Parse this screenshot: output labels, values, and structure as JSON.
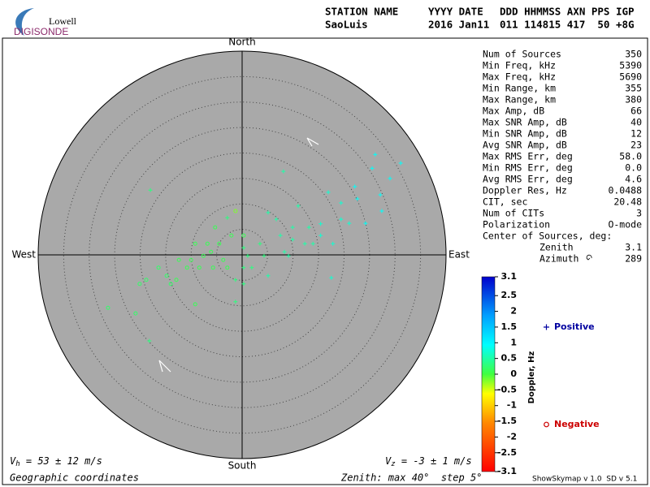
{
  "header": {
    "logo_top": "Lowell",
    "logo_bottom": "DIGISONDE",
    "station_label": "STATION NAME",
    "date_label": "YYYY DATE",
    "time_label": "DDD HHMMSS AXN PPS IGP",
    "station": "SaoLuis",
    "date": "2016 Jan11",
    "time": "011 114815 417  50 +8G"
  },
  "chart_data": {
    "type": "scatter",
    "xlim": [
      -40,
      40
    ],
    "ylim": [
      -40,
      40
    ],
    "rings": [
      5,
      10,
      15,
      20,
      25,
      30,
      35,
      40
    ],
    "directions": {
      "north": "North",
      "south": "South",
      "east": "East",
      "west": "West"
    },
    "series": [
      {
        "name": "Positive",
        "marker": "plus",
        "color": "#0000a0",
        "x": [
          26.1,
          31.1,
          25.5,
          8.1,
          22.1,
          27.1,
          16.9,
          19.4,
          24.2,
          17.5,
          11.0,
          5.1,
          6.7,
          13.1,
          15.4,
          9.9,
          8.3,
          3.5,
          0.3,
          1.9,
          -1.3,
          0.3,
          5.1,
          12.3,
          17.8,
          -2.9,
          9.9,
          15.4,
          7.5,
          13.9,
          27.4,
          22.6,
          21.0,
          1.1,
          4.3,
          9.1,
          0.3,
          -1.3,
          29.0,
          19.4,
          -18.0,
          -18.2
        ],
        "y": [
          19.7,
          18.0,
          17.0,
          16.4,
          13.4,
          11.8,
          12.3,
          7.0,
          6.2,
          -4.5,
          9.6,
          8.3,
          7.0,
          5.4,
          3.8,
          3.0,
          0.6,
          2.2,
          1.4,
          -2.5,
          -9.2,
          -5.7,
          -4.1,
          2.2,
          2.2,
          7.3,
          5.4,
          6.1,
          3.8,
          2.2,
          8.6,
          11.0,
          6.2,
          -0.2,
          -0.2,
          -0.2,
          -2.5,
          -4.9,
          15.0,
          10.2,
          12.7,
          -16.9
        ],
        "doppler": [
          0.9,
          0.9,
          0.9,
          0.5,
          0.9,
          0.9,
          0.7,
          0.7,
          0.9,
          0.7,
          0.5,
          0.5,
          0.5,
          0.5,
          0.7,
          0.5,
          0.5,
          0.3,
          0.3,
          0.3,
          0.3,
          0.3,
          0.5,
          0.5,
          0.7,
          0.3,
          0.5,
          0.7,
          0.5,
          0.5,
          0.9,
          0.9,
          0.7,
          0.3,
          0.3,
          0.5,
          0.3,
          0.3,
          0.9,
          0.7,
          0.3,
          0.3
        ]
      },
      {
        "name": "Negative",
        "marker": "circle",
        "color": "#cc0000",
        "x": [
          -26.3,
          -20.9,
          -20.1,
          -18.8,
          -12.9,
          -12.4,
          -9.2,
          -7.6,
          -6.1,
          -4.5,
          -3.7,
          -2.1,
          -8.4,
          -10.8,
          -14.8,
          -9.2,
          0.3,
          -1.3,
          -5.3,
          -6.8,
          -10.0,
          -14.0,
          -16.4,
          -2.9,
          -5.7
        ],
        "y": [
          -10.4,
          -11.5,
          -5.7,
          -4.9,
          -4.9,
          -1.0,
          2.2,
          -0.2,
          0.6,
          2.2,
          -1.0,
          3.8,
          -2.5,
          -2.5,
          -4.1,
          -9.7,
          3.8,
          8.6,
          5.4,
          2.2,
          -1.0,
          -5.7,
          -2.5,
          -2.5,
          -2.5
        ],
        "doppler": [
          0.2,
          0.2,
          0.2,
          0.2,
          0.1,
          0.1,
          0.1,
          0.1,
          0.1,
          0.1,
          0.1,
          0.1,
          0.1,
          0.1,
          0.2,
          0.1,
          0.1,
          -0.2,
          0.1,
          0.1,
          0.1,
          0.2,
          0.2,
          0.1,
          0.1
        ]
      }
    ],
    "colorbar": {
      "title": "Doppler, Hz",
      "lim": [
        -3.1,
        3.1
      ],
      "ticks": [
        3.1,
        2.5,
        2,
        1.5,
        1,
        0.5,
        0,
        -0.5,
        -1,
        -1.5,
        -2,
        -2.5,
        -3.1
      ]
    }
  },
  "stats": [
    {
      "label": "Num of Sources",
      "value": "350"
    },
    {
      "label": "Min Freq, kHz",
      "value": "5390"
    },
    {
      "label": "Max Freq, kHz",
      "value": "5690"
    },
    {
      "label": "Min Range, km",
      "value": "355"
    },
    {
      "label": "Max Range, km",
      "value": "380"
    },
    {
      "label": "Max Amp, dB",
      "value": "66"
    },
    {
      "label": "Max SNR Amp, dB",
      "value": "40"
    },
    {
      "label": "Min SNR Amp, dB",
      "value": "12"
    },
    {
      "label": "Avg SNR Amp, dB",
      "value": "23"
    },
    {
      "label": "Max RMS Err, deg",
      "value": "58.0"
    },
    {
      "label": "Min RMS Err, deg",
      "value": "0.0"
    },
    {
      "label": "Avg RMS Err, deg",
      "value": "4.6"
    },
    {
      "label": "Doppler Res, Hz",
      "value": "0.0488"
    },
    {
      "label": "CIT, sec",
      "value": "20.48"
    },
    {
      "label": "Num of CITs",
      "value": "3"
    },
    {
      "label": "Polarization",
      "value": "O-mode"
    }
  ],
  "center": {
    "title": "Center of Sources, deg:",
    "zenith_label": "Zenith",
    "zenith": "3.1",
    "azimuth_label": "Azimuth",
    "azimuth": "289"
  },
  "footer": {
    "vh_symbol": "V",
    "vh_sub": "h",
    "vh_text": " = 53 ± 12 m/s",
    "vz_symbol": "V",
    "vz_sub": "z",
    "vz_text": " = -3 ± 1 m/s",
    "coords": "Geographic coordinates",
    "zenith": "Zenith: max 40°  step 5°",
    "version": "ShowSkymap v 1.0  SD v 5.1"
  }
}
